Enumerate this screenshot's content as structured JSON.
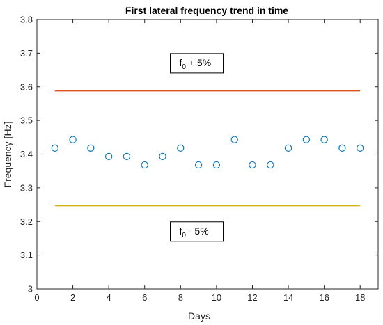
{
  "chart_data": {
    "type": "scatter",
    "title": "First lateral frequency trend in time",
    "xlabel": "Days",
    "ylabel": "Frequency [Hz]",
    "xlim": [
      0,
      19
    ],
    "ylim": [
      3.0,
      3.8
    ],
    "xticks": [
      0,
      2,
      4,
      6,
      8,
      10,
      12,
      14,
      16,
      18
    ],
    "yticks": [
      3,
      3.1,
      3.2,
      3.3,
      3.4,
      3.5,
      3.6,
      3.7,
      3.8
    ],
    "xtick_labels": [
      "0",
      "2",
      "4",
      "6",
      "8",
      "10",
      "12",
      "14",
      "16",
      "18"
    ],
    "ytick_labels": [
      "3",
      "3.1",
      "3.2",
      "3.3",
      "3.4",
      "3.5",
      "3.6",
      "3.7",
      "3.8"
    ],
    "grid": false,
    "points": {
      "x": [
        1,
        2,
        3,
        4,
        5,
        6,
        7,
        8,
        9,
        10,
        11,
        12,
        13,
        14,
        15,
        16,
        17,
        18
      ],
      "y": [
        3.418,
        3.443,
        3.418,
        3.393,
        3.393,
        3.368,
        3.393,
        3.418,
        3.368,
        3.368,
        3.443,
        3.368,
        3.368,
        3.418,
        3.443,
        3.443,
        3.418,
        3.418
      ],
      "marker": "open-circle",
      "color": "#0072BD"
    },
    "lines": [
      {
        "x": [
          1,
          18
        ],
        "y": [
          3.588,
          3.588
        ],
        "color": "#D95319"
      },
      {
        "x": [
          1,
          18
        ],
        "y": [
          3.247,
          3.247
        ],
        "color": "#D4B21A"
      }
    ],
    "annotations": [
      {
        "main": "f",
        "sub": "0",
        "rest": " + 5%",
        "x": 8.9,
        "y": 3.67
      },
      {
        "main": "f",
        "sub": "0",
        "rest": " - 5%",
        "x": 8.9,
        "y": 3.17
      }
    ]
  }
}
